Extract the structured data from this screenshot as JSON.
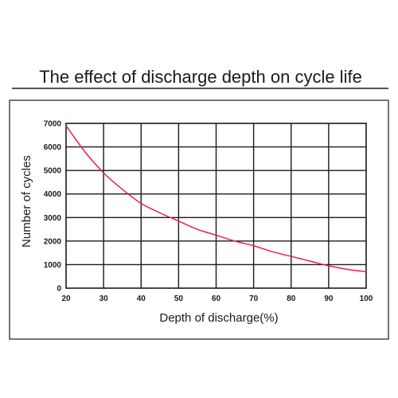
{
  "chart_data": {
    "type": "line",
    "title": "The effect of discharge depth on cycle life",
    "xlabel": "Depth of discharge(%)",
    "ylabel": "Number of cycles",
    "xlim": [
      20,
      100
    ],
    "ylim": [
      0,
      7000
    ],
    "x_ticks": [
      20,
      30,
      40,
      50,
      60,
      70,
      80,
      90,
      100
    ],
    "y_ticks": [
      0,
      1000,
      2000,
      3000,
      4000,
      5000,
      6000,
      7000
    ],
    "grid": true,
    "line_color": "#e0205a",
    "series": [
      {
        "x": [
          20,
          25,
          30,
          35,
          40,
          45,
          50,
          55,
          60,
          65,
          70,
          75,
          80,
          85,
          90,
          95,
          100
        ],
        "y": [
          6900,
          5800,
          4900,
          4200,
          3600,
          3200,
          2850,
          2500,
          2250,
          2000,
          1800,
          1550,
          1350,
          1150,
          950,
          800,
          700
        ]
      }
    ]
  }
}
